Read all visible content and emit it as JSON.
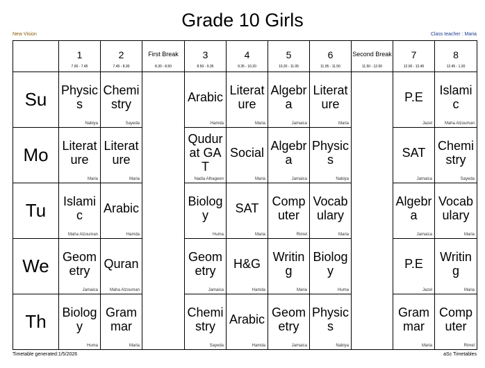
{
  "title": "Grade 10 Girls",
  "school": "New Vision",
  "class_teacher": "Class teacher : Maria",
  "footer_left": "Timetable generated:1/5/2026",
  "footer_right": "aSc Timetables",
  "periods": [
    {
      "label": "1",
      "time": "7.00 - 7.45",
      "break": false
    },
    {
      "label": "2",
      "time": "7.45 - 8.30",
      "break": false
    },
    {
      "label": "First Break",
      "time": "8.30 - 8.50",
      "break": true
    },
    {
      "label": "3",
      "time": "8.50 - 9.35",
      "break": false
    },
    {
      "label": "4",
      "time": "9.35 - 10.20",
      "break": false
    },
    {
      "label": "5",
      "time": "10.20 - 11.05",
      "break": false
    },
    {
      "label": "6",
      "time": "11.05 - 11.50",
      "break": false
    },
    {
      "label": "Second Break",
      "time": "11.50 - 12.00",
      "break": true
    },
    {
      "label": "7",
      "time": "12.00 - 12.45",
      "break": false
    },
    {
      "label": "8",
      "time": "12.45 - 1.30",
      "break": false
    }
  ],
  "days": [
    {
      "label": "Su",
      "lessons": [
        {
          "subject": "Physics",
          "teacher": "Nabiya"
        },
        {
          "subject": "Chemistry",
          "teacher": "Sayeda"
        },
        {
          "subject": "Arabic",
          "teacher": "Hamda"
        },
        {
          "subject": "Literature",
          "teacher": "Maria"
        },
        {
          "subject": "Algebra",
          "teacher": "Jamaica"
        },
        {
          "subject": "Literature",
          "teacher": "Maria"
        },
        {
          "subject": "P.E",
          "teacher": "Jazel"
        },
        {
          "subject": "Islamic",
          "teacher": "Maha Alzouman"
        }
      ]
    },
    {
      "label": "Mo",
      "lessons": [
        {
          "subject": "Literature",
          "teacher": "Maria"
        },
        {
          "subject": "Literature",
          "teacher": "Maria"
        },
        {
          "subject": "Qudurat GAT",
          "teacher": "Nadia Alhageen"
        },
        {
          "subject": "Social",
          "teacher": "Maria"
        },
        {
          "subject": "Algebra",
          "teacher": "Jamaica"
        },
        {
          "subject": "Physics",
          "teacher": "Nabiya"
        },
        {
          "subject": "SAT",
          "teacher": "Jamaica"
        },
        {
          "subject": "Chemistry",
          "teacher": "Sayeda"
        }
      ]
    },
    {
      "label": "Tu",
      "lessons": [
        {
          "subject": "Islamic",
          "teacher": "Maha Alzouman"
        },
        {
          "subject": "Arabic",
          "teacher": "Hamda"
        },
        {
          "subject": "Biology",
          "teacher": "Huma"
        },
        {
          "subject": "SAT",
          "teacher": "Maria"
        },
        {
          "subject": "Computer",
          "teacher": "Rimel"
        },
        {
          "subject": "Vocabulary",
          "teacher": "Maria"
        },
        {
          "subject": "Algebra",
          "teacher": "Jamaica"
        },
        {
          "subject": "Vocabulary",
          "teacher": "Maria"
        }
      ]
    },
    {
      "label": "We",
      "lessons": [
        {
          "subject": "Geometry",
          "teacher": "Jamaica"
        },
        {
          "subject": "Quran",
          "teacher": "Maha Alzouman"
        },
        {
          "subject": "Geometry",
          "teacher": "Jamaica"
        },
        {
          "subject": "H&G",
          "teacher": "Hamda"
        },
        {
          "subject": "Writing",
          "teacher": "Maria"
        },
        {
          "subject": "Biology",
          "teacher": "Huma"
        },
        {
          "subject": "P.E",
          "teacher": "Jazel"
        },
        {
          "subject": "Writing",
          "teacher": "Maria"
        }
      ]
    },
    {
      "label": "Th",
      "lessons": [
        {
          "subject": "Biology",
          "teacher": "Huma"
        },
        {
          "subject": "Grammar",
          "teacher": "Maria"
        },
        {
          "subject": "Chemistry",
          "teacher": "Sayeda"
        },
        {
          "subject": "Arabic",
          "teacher": "Hamda"
        },
        {
          "subject": "Geometry",
          "teacher": "Jamaica"
        },
        {
          "subject": "Physics",
          "teacher": "Nabiya"
        },
        {
          "subject": "Grammar",
          "teacher": "Maria"
        },
        {
          "subject": "Computer",
          "teacher": "Rimel"
        }
      ]
    }
  ]
}
